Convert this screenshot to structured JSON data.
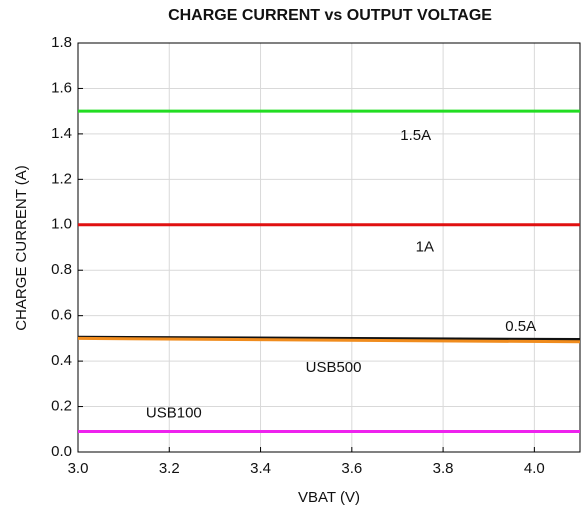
{
  "chart_data": {
    "type": "line",
    "title": "CHARGE CURRENT vs OUTPUT VOLTAGE",
    "x_label": "VBAT (V)",
    "y_label": "CHARGE CURRENT (A)",
    "x": [
      3.0,
      4.1
    ],
    "series": [
      {
        "name": "1.5A",
        "color": "#22dd22",
        "values": [
          1.5,
          1.5
        ],
        "label_at": [
          3.74,
          1.39
        ]
      },
      {
        "name": "1A",
        "color": "#e01010",
        "values": [
          1.0,
          1.0
        ],
        "label_at": [
          3.76,
          0.9
        ]
      },
      {
        "name": "0.5A",
        "color": "#111111",
        "values": [
          0.505,
          0.495
        ],
        "label_at": [
          3.97,
          0.55
        ]
      },
      {
        "name": "USB500",
        "color": "#f08c1e",
        "values": [
          0.5,
          0.485
        ],
        "label_at": [
          3.56,
          0.37
        ]
      },
      {
        "name": "USB100",
        "color": "#ee22ee",
        "values": [
          0.09,
          0.09
        ],
        "label_at": [
          3.21,
          0.17
        ]
      }
    ],
    "xlim": [
      3.0,
      4.1
    ],
    "ylim": [
      0,
      1.8
    ],
    "xticks": [
      {
        "value": 3.0,
        "label": "3.0"
      },
      3.2,
      3.4,
      3.6,
      3.8,
      {
        "value": 4.0,
        "label": "4.0"
      }
    ],
    "yticks": [
      {
        "value": 0,
        "label": "0.0"
      },
      0.2,
      0.4,
      0.6,
      0.8,
      {
        "value": 1,
        "label": "1.0"
      },
      1.2,
      1.4,
      1.6,
      1.8
    ],
    "grid": true
  }
}
